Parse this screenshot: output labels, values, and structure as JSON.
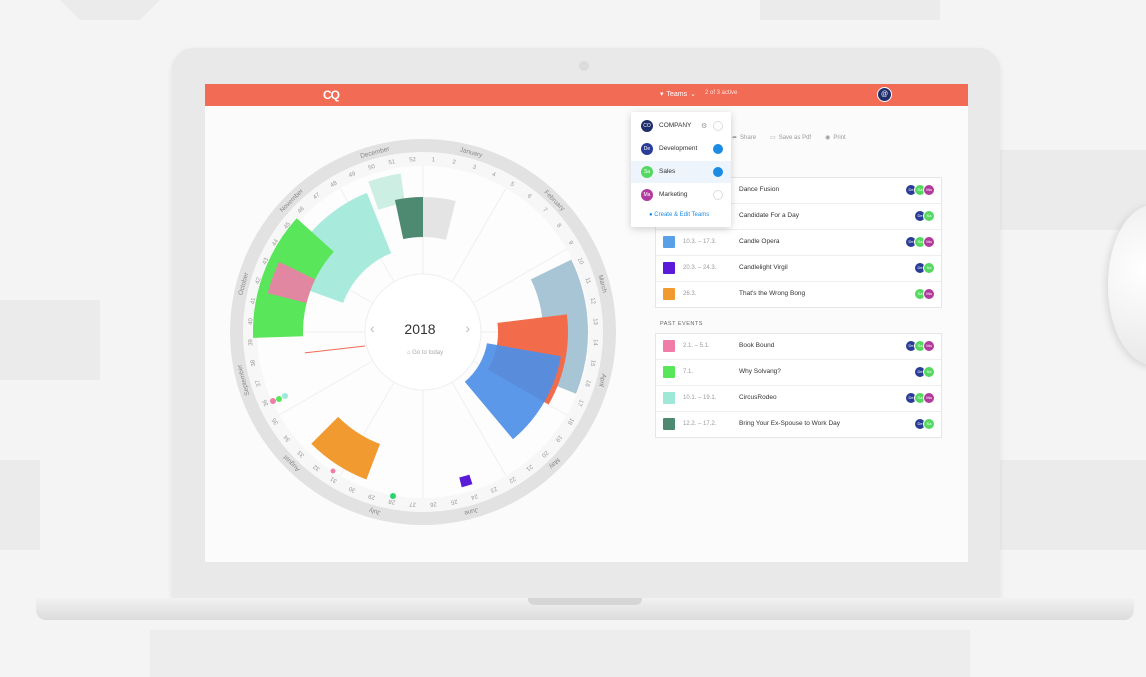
{
  "topbar": {
    "logo": "CQ",
    "teams_label": "Teams",
    "active_label": "2 of 3 active",
    "user_initials": "@"
  },
  "toolbar": {
    "share": "Share",
    "save_pdf": "Save as Pdf",
    "print": "Print"
  },
  "dropdown": {
    "items": [
      {
        "badge": "CO",
        "label": "COMPANY",
        "color": "#1f2d6b",
        "checked": false
      },
      {
        "badge": "De",
        "label": "Development",
        "color": "#2a3c97",
        "checked": true
      },
      {
        "badge": "Sa",
        "label": "Sales",
        "color": "#54d860",
        "checked": true
      },
      {
        "badge": "Ma",
        "label": "Marketing",
        "color": "#b03a9e",
        "checked": false
      }
    ],
    "create_label": "Create & Edit Teams"
  },
  "wheel": {
    "year": "2018",
    "go_today": "Go to today",
    "prev": "‹",
    "next": "›"
  },
  "upcoming": [
    {
      "dates": "",
      "name": "Dance Fusion",
      "color": "",
      "avatars": [
        "De",
        "Sa",
        "Ma"
      ]
    },
    {
      "dates": "",
      "name": "Candidate For a Day",
      "color": "",
      "avatars": [
        "De",
        "Sa"
      ]
    },
    {
      "dates": "10.3. – 17.3.",
      "name": "Candle Opera",
      "color": "#5aa0e8",
      "avatars": [
        "De",
        "Sa",
        "Ma"
      ]
    },
    {
      "dates": "20.3. – 24.3.",
      "name": "Candlelight Virgil",
      "color": "#5a1ad8",
      "avatars": [
        "De",
        "Sa"
      ]
    },
    {
      "dates": "26.3.",
      "name": "That's the Wrong Bong",
      "color": "#f09a2f",
      "avatars": [
        "Sa",
        "Ma"
      ]
    }
  ],
  "past_title": "PAST EVENTS",
  "past": [
    {
      "dates": "2.1. – 5.1.",
      "name": "Book Bound",
      "color": "#f07ca8",
      "avatars": [
        "De",
        "Sa",
        "Ma"
      ]
    },
    {
      "dates": "7.1.",
      "name": "Why Solvang?",
      "color": "#5ae65a",
      "avatars": [
        "De",
        "Sa"
      ]
    },
    {
      "dates": "10.1. – 19.1.",
      "name": "CircusRodeo",
      "color": "#9ee8d8",
      "avatars": [
        "De",
        "Sa",
        "Ma"
      ]
    },
    {
      "dates": "12.2. – 17.2.",
      "name": "Bring Your Ex-Spouse to Work Day",
      "color": "#4e8a72",
      "avatars": [
        "De",
        "Sa"
      ]
    }
  ],
  "avatar_colors": {
    "De": "#2a3c97",
    "Sa": "#54d860",
    "Ma": "#b03a9e"
  },
  "months": [
    "January",
    "February",
    "March",
    "April",
    "May",
    "June",
    "July",
    "August",
    "September",
    "October",
    "November",
    "December"
  ],
  "week_numbers": [
    "1",
    "2",
    "3",
    "4",
    "5",
    "6",
    "7",
    "8",
    "9",
    "10",
    "11",
    "12",
    "13",
    "14",
    "15",
    "16",
    "17",
    "18",
    "19",
    "20",
    "21",
    "22",
    "23",
    "24",
    "25",
    "26",
    "27",
    "28",
    "29",
    "30",
    "31",
    "32",
    "33",
    "34",
    "35",
    "36",
    "37",
    "38",
    "39",
    "40",
    "41",
    "42",
    "43",
    "44",
    "45",
    "46",
    "47",
    "48",
    "49",
    "50",
    "51",
    "52"
  ]
}
